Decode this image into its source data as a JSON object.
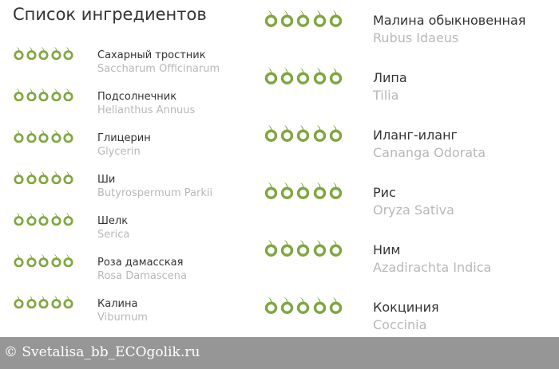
{
  "title": "Список ингредиентов",
  "rating_color": "#7fa73f",
  "left": [
    {
      "name": "Сахарный тростник",
      "latin": "Saccharum Officinarum",
      "rating": 5
    },
    {
      "name": "Подсолнечник",
      "latin": "Helianthus Annuus",
      "rating": 5
    },
    {
      "name": "Глицерин",
      "latin": "Glycerin",
      "rating": 5
    },
    {
      "name": "Ши",
      "latin": "Butyrospermum Parkii",
      "rating": 5
    },
    {
      "name": "Шелк",
      "latin": "Serica",
      "rating": 5
    },
    {
      "name": "Роза дамасская",
      "latin": "Rosa Damascena",
      "rating": 5
    },
    {
      "name": "Калина",
      "latin": "Viburnum",
      "rating": 5
    }
  ],
  "right": [
    {
      "name": "Малина обыкновенная",
      "latin": "Rubus Idaeus",
      "rating": 5
    },
    {
      "name": "Липа",
      "latin": "Tilia",
      "rating": 5
    },
    {
      "name": "Иланг-иланг",
      "latin": "Cananga Odorata",
      "rating": 5
    },
    {
      "name": "Рис",
      "latin": "Oryza Sativa",
      "rating": 5
    },
    {
      "name": "Ним",
      "latin": "Azadirachta Indica",
      "rating": 5
    },
    {
      "name": "Кокциния",
      "latin": "Coccinia",
      "rating": 5
    }
  ],
  "watermark": "© Svetalisa_bb_ECOgolik.ru"
}
